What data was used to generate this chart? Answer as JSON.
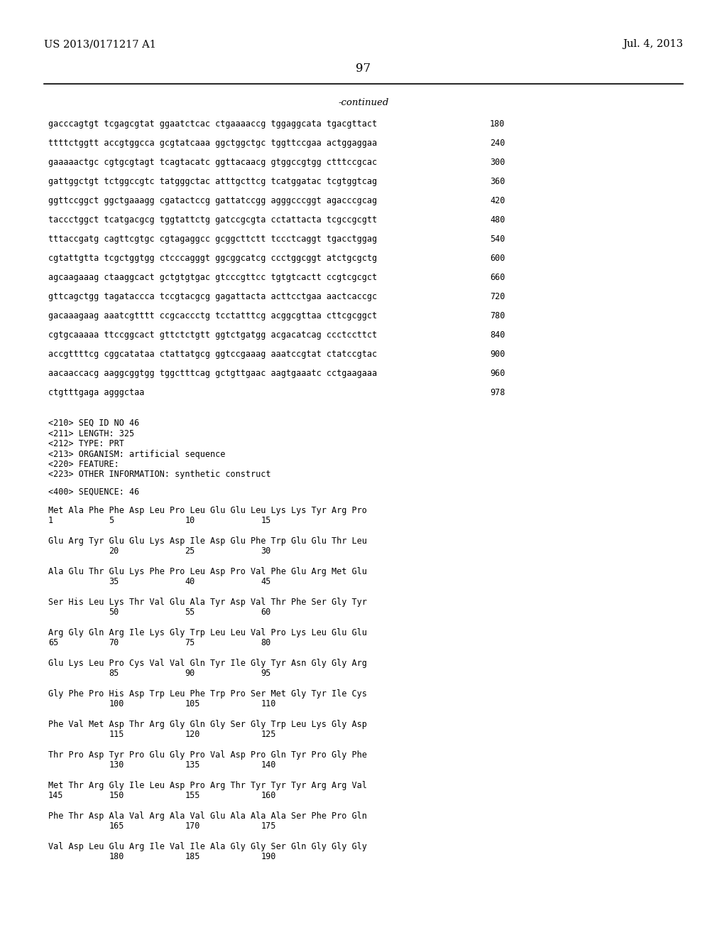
{
  "header_left": "US 2013/0171217 A1",
  "header_right": "Jul. 4, 2013",
  "page_number": "97",
  "continued_text": "-continued",
  "background_color": "#ffffff",
  "text_color": "#000000",
  "sequence_lines": [
    [
      "gacccagtgt tcgagcgtat ggaatctcac ctgaaaaccg tggaggcata tgacgttact",
      "180"
    ],
    [
      "ttttctggtt accgtggcca gcgtatcaaa ggctggctgc tggttccgaa actggaggaa",
      "240"
    ],
    [
      "gaaaaactgc cgtgcgtagt tcagtacatc ggttacaacg gtggccgtgg ctttccgcac",
      "300"
    ],
    [
      "gattggctgt tctggccgtc tatgggctac atttgcttcg tcatggatac tcgtggtcag",
      "360"
    ],
    [
      "ggttccggct ggctgaaagg cgatactccg gattatccgg agggcccggt agacccgcag",
      "420"
    ],
    [
      "taccctggct tcatgacgcg tggtattctg gatccgcgta cctattacta tcgccgcgtt",
      "480"
    ],
    [
      "tttaccgatg cagttcgtgc cgtagaggcc gcggcttctt tccctcaggt tgacctggag",
      "540"
    ],
    [
      "cgtattgtta tcgctggtgg ctcccagggt ggcggcatcg ccctggcggt atctgcgctg",
      "600"
    ],
    [
      "agcaagaaag ctaaggcact gctgtgtgac gtcccgttcc tgtgtcactt ccgtcgcgct",
      "660"
    ],
    [
      "gttcagctgg tagataccca tccgtacgcg gagattacta acttcctgaa aactcaccgc",
      "720"
    ],
    [
      "gacaaagaag aaatcgtttt ccgcaccctg tcctatttcg acggcgttaa cttcgcggct",
      "780"
    ],
    [
      "cgtgcaaaaa ttccggcact gttctctgtt ggtctgatgg acgacatcag ccctccttct",
      "840"
    ],
    [
      "accgttttcg cggcatataa ctattatgcg ggtccgaaag aaatccgtat ctatccgtac",
      "900"
    ],
    [
      "aacaaccacg aaggcggtgg tggctttcag gctgttgaac aagtgaaatc cctgaagaaa",
      "960"
    ],
    [
      "ctgtttgaga agggctaa",
      "978"
    ]
  ],
  "metadata_lines": [
    "<210> SEQ ID NO 46",
    "<211> LENGTH: 325",
    "<212> TYPE: PRT",
    "<213> ORGANISM: artificial sequence",
    "<220> FEATURE:",
    "<223> OTHER INFORMATION: synthetic construct"
  ],
  "sequence_label": "<400> SEQUENCE: 46",
  "protein_blocks": [
    {
      "seq": "Met Ala Phe Phe Asp Leu Pro Leu Glu Glu Leu Lys Lys Tyr Arg Pro",
      "nums": [
        [
          "1",
          0
        ],
        [
          "5",
          4
        ],
        [
          "10",
          9
        ],
        [
          "15",
          14
        ]
      ]
    },
    {
      "seq": "Glu Arg Tyr Glu Glu Lys Asp Ile Asp Glu Phe Trp Glu Glu Thr Leu",
      "nums": [
        [
          "20",
          4
        ],
        [
          "25",
          9
        ],
        [
          "30",
          14
        ]
      ]
    },
    {
      "seq": "Ala Glu Thr Glu Lys Phe Pro Leu Asp Pro Val Phe Glu Arg Met Glu",
      "nums": [
        [
          "35",
          4
        ],
        [
          "40",
          9
        ],
        [
          "45",
          14
        ]
      ]
    },
    {
      "seq": "Ser His Leu Lys Thr Val Glu Ala Tyr Asp Val Thr Phe Ser Gly Tyr",
      "nums": [
        [
          "50",
          4
        ],
        [
          "55",
          9
        ],
        [
          "60",
          14
        ]
      ]
    },
    {
      "seq": "Arg Gly Gln Arg Ile Lys Gly Trp Leu Leu Val Pro Lys Leu Glu Glu",
      "nums": [
        [
          "65",
          0
        ],
        [
          "70",
          4
        ],
        [
          "75",
          9
        ],
        [
          "80",
          14
        ]
      ]
    },
    {
      "seq": "Glu Lys Leu Pro Cys Val Val Gln Tyr Ile Gly Tyr Asn Gly Gly Arg",
      "nums": [
        [
          "85",
          4
        ],
        [
          "90",
          9
        ],
        [
          "95",
          14
        ]
      ]
    },
    {
      "seq": "Gly Phe Pro His Asp Trp Leu Phe Trp Pro Ser Met Gly Tyr Ile Cys",
      "nums": [
        [
          "100",
          4
        ],
        [
          "105",
          9
        ],
        [
          "110",
          14
        ]
      ]
    },
    {
      "seq": "Phe Val Met Asp Thr Arg Gly Gln Gly Ser Gly Trp Leu Lys Gly Asp",
      "nums": [
        [
          "115",
          4
        ],
        [
          "120",
          9
        ],
        [
          "125",
          14
        ]
      ]
    },
    {
      "seq": "Thr Pro Asp Tyr Pro Glu Gly Pro Val Asp Pro Gln Tyr Pro Gly Phe",
      "nums": [
        [
          "130",
          4
        ],
        [
          "135",
          9
        ],
        [
          "140",
          14
        ]
      ]
    },
    {
      "seq": "Met Thr Arg Gly Ile Leu Asp Pro Arg Thr Tyr Tyr Tyr Arg Arg Val",
      "nums": [
        [
          "145",
          0
        ],
        [
          "150",
          4
        ],
        [
          "155",
          9
        ],
        [
          "160",
          14
        ]
      ]
    },
    {
      "seq": "Phe Thr Asp Ala Val Arg Ala Val Glu Ala Ala Ala Ser Phe Pro Gln",
      "nums": [
        [
          "165",
          4
        ],
        [
          "170",
          9
        ],
        [
          "175",
          14
        ]
      ]
    },
    {
      "seq": "Val Asp Leu Glu Arg Ile Val Ile Ala Gly Gly Ser Gln Gly Gly Gly",
      "nums": [
        [
          "180",
          4
        ],
        [
          "185",
          9
        ],
        [
          "190",
          14
        ]
      ]
    }
  ]
}
